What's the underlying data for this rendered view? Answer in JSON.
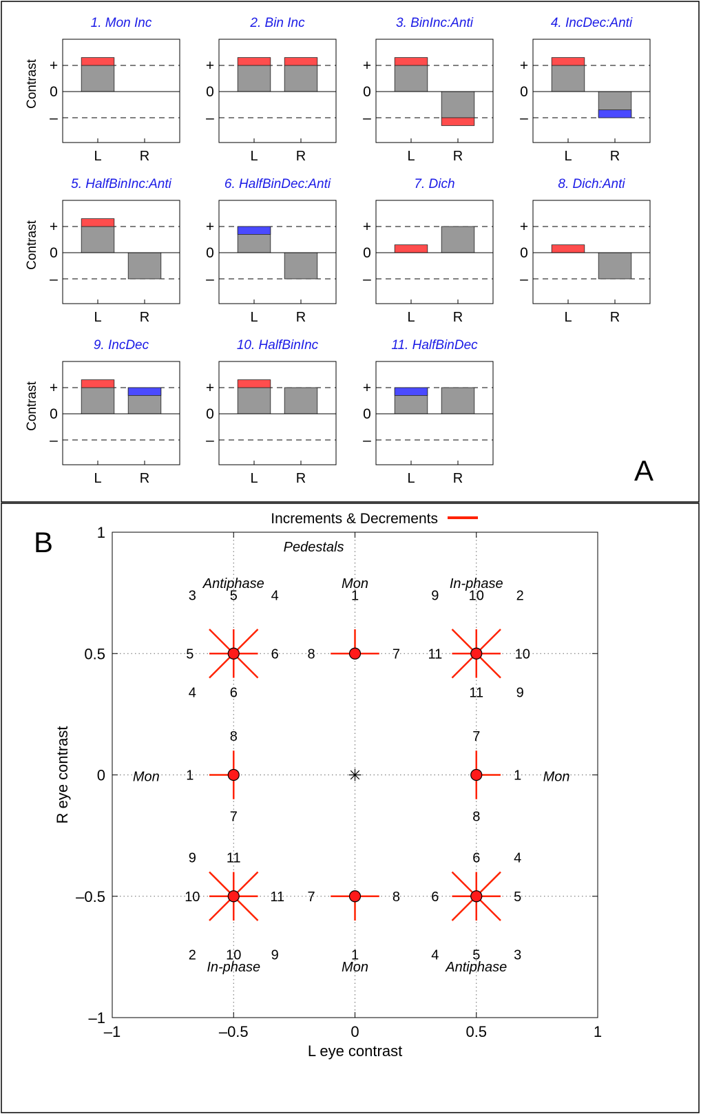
{
  "panel_a_letter": "A",
  "panel_b_letter": "B",
  "chart_data": [
    {
      "type": "bar",
      "panel": "A",
      "ylabel": "Contrast",
      "y_tick_labels": [
        "+",
        "0",
        "–"
      ],
      "eye_labels": [
        "L",
        "R"
      ],
      "colors": {
        "pedestal": "#999999",
        "increment": "#ff4d4d",
        "decrement": "#4a4aff"
      },
      "subplots": [
        {
          "title": "1. Mon Inc",
          "show_ylabel": true,
          "eyes": [
            {
              "pedestal": 1,
              "change": 0.3
            },
            {
              "pedestal": 0,
              "change": 0
            }
          ]
        },
        {
          "title": "2. Bin Inc",
          "show_ylabel": false,
          "eyes": [
            {
              "pedestal": 1,
              "change": 0.3
            },
            {
              "pedestal": 1,
              "change": 0.3
            }
          ]
        },
        {
          "title": "3. BinInc:Anti",
          "show_ylabel": false,
          "eyes": [
            {
              "pedestal": 1,
              "change": 0.3
            },
            {
              "pedestal": -1,
              "change": -0.3
            }
          ]
        },
        {
          "title": "4. IncDec:Anti",
          "show_ylabel": false,
          "eyes": [
            {
              "pedestal": 1,
              "change": 0.3
            },
            {
              "pedestal": -1,
              "change": 0.3
            }
          ]
        },
        {
          "title": "5. HalfBinInc:Anti",
          "show_ylabel": true,
          "eyes": [
            {
              "pedestal": 1,
              "change": 0.3
            },
            {
              "pedestal": -1,
              "change": 0
            }
          ]
        },
        {
          "title": "6. HalfBinDec:Anti",
          "show_ylabel": false,
          "eyes": [
            {
              "pedestal": 1,
              "change": -0.3
            },
            {
              "pedestal": -1,
              "change": 0
            }
          ]
        },
        {
          "title": "7. Dich",
          "show_ylabel": false,
          "eyes": [
            {
              "pedestal": 0,
              "change": 0.3
            },
            {
              "pedestal": 1,
              "change": 0
            }
          ]
        },
        {
          "title": "8. Dich:Anti",
          "show_ylabel": false,
          "eyes": [
            {
              "pedestal": 0,
              "change": 0.3
            },
            {
              "pedestal": -1,
              "change": 0
            }
          ]
        },
        {
          "title": "9. IncDec",
          "show_ylabel": true,
          "eyes": [
            {
              "pedestal": 1,
              "change": 0.3
            },
            {
              "pedestal": 1,
              "change": -0.3
            }
          ]
        },
        {
          "title": "10. HalfBinInc",
          "show_ylabel": false,
          "eyes": [
            {
              "pedestal": 1,
              "change": 0.3
            },
            {
              "pedestal": 1,
              "change": 0
            }
          ]
        },
        {
          "title": "11. HalfBinDec",
          "show_ylabel": false,
          "eyes": [
            {
              "pedestal": 1,
              "change": -0.3
            },
            {
              "pedestal": 1,
              "change": 0
            }
          ]
        }
      ]
    },
    {
      "type": "scatter",
      "panel": "B",
      "legend": {
        "label": "Increments & Decrements",
        "placement": "top",
        "color": "#ff2200"
      },
      "xlabel": "L eye contrast",
      "ylabel": "R eye contrast",
      "xlim": [
        -1,
        1
      ],
      "ylim": [
        -1,
        1
      ],
      "x_ticks": [
        {
          "value": -1,
          "label": "–1"
        },
        {
          "value": -0.5,
          "label": "–0.5"
        },
        {
          "value": 0,
          "label": "0"
        },
        {
          "value": 0.5,
          "label": "0.5"
        },
        {
          "value": 1,
          "label": "1"
        }
      ],
      "y_ticks": [
        {
          "value": -1,
          "label": "–1"
        },
        {
          "value": -0.5,
          "label": "–0.5"
        },
        {
          "value": 0,
          "label": "0"
        },
        {
          "value": 0.5,
          "label": "0.5"
        },
        {
          "value": 1,
          "label": "1"
        }
      ],
      "dotted_grid": [
        -0.5,
        0,
        0.5
      ],
      "origin_marker": {
        "x": 0,
        "y": 0,
        "symbol": "asterisk"
      },
      "annotations": [
        {
          "text": "Pedestals",
          "x": -0.17,
          "y": 0.94
        },
        {
          "text": "Antiphase",
          "x": -0.5,
          "y": 0.79
        },
        {
          "text": "Mon",
          "x": 0,
          "y": 0.79
        },
        {
          "text": "In-phase",
          "x": 0.5,
          "y": 0.79
        },
        {
          "text": "Mon",
          "x": -0.86,
          "y": -0.005
        },
        {
          "text": "Mon",
          "x": 0.83,
          "y": -0.005
        },
        {
          "text": "In-phase",
          "x": -0.5,
          "y": -0.79
        },
        {
          "text": "Mon",
          "x": 0,
          "y": -0.79
        },
        {
          "text": "Antiphase",
          "x": 0.5,
          "y": -0.79
        }
      ],
      "pedestals": [
        {
          "x": -0.5,
          "y": 0.5,
          "segments": [
            "h",
            "v",
            "d1",
            "d2"
          ],
          "labels": [
            {
              "text": "3",
              "dx": -0.17,
              "dy": 0.24
            },
            {
              "text": "5",
              "dx": 0,
              "dy": 0.24
            },
            {
              "text": "4",
              "dx": 0.17,
              "dy": 0.24
            },
            {
              "text": "5",
              "dx": -0.18,
              "dy": 0
            },
            {
              "text": "6",
              "dx": 0.17,
              "dy": 0
            },
            {
              "text": "4",
              "dx": -0.17,
              "dy": -0.16
            },
            {
              "text": "6",
              "dx": 0,
              "dy": -0.16
            }
          ]
        },
        {
          "x": 0,
          "y": 0.5,
          "segments": [
            "h",
            "vu"
          ],
          "labels": [
            {
              "text": "1",
              "dx": 0,
              "dy": 0.24
            },
            {
              "text": "8",
              "dx": -0.18,
              "dy": 0
            },
            {
              "text": "7",
              "dx": 0.17,
              "dy": 0
            }
          ]
        },
        {
          "x": 0.5,
          "y": 0.5,
          "segments": [
            "h",
            "v",
            "d1",
            "d2"
          ],
          "labels": [
            {
              "text": "9",
              "dx": -0.17,
              "dy": 0.24
            },
            {
              "text": "10",
              "dx": 0,
              "dy": 0.24
            },
            {
              "text": "2",
              "dx": 0.18,
              "dy": 0.24
            },
            {
              "text": "11",
              "dx": -0.17,
              "dy": 0
            },
            {
              "text": "10",
              "dx": 0.19,
              "dy": 0
            },
            {
              "text": "11",
              "dx": 0,
              "dy": -0.16
            },
            {
              "text": "9",
              "dx": 0.18,
              "dy": -0.16
            }
          ]
        },
        {
          "x": -0.5,
          "y": 0,
          "segments": [
            "hl",
            "v"
          ],
          "labels": [
            {
              "text": "8",
              "dx": 0,
              "dy": 0.16
            },
            {
              "text": "1",
              "dx": -0.18,
              "dy": 0
            },
            {
              "text": "7",
              "dx": 0,
              "dy": -0.17
            }
          ]
        },
        {
          "x": 0.5,
          "y": 0,
          "segments": [
            "hr",
            "v"
          ],
          "labels": [
            {
              "text": "7",
              "dx": 0,
              "dy": 0.16
            },
            {
              "text": "1",
              "dx": 0.17,
              "dy": 0
            },
            {
              "text": "8",
              "dx": 0,
              "dy": -0.17
            }
          ]
        },
        {
          "x": -0.5,
          "y": -0.5,
          "segments": [
            "h",
            "v",
            "d1",
            "d2"
          ],
          "labels": [
            {
              "text": "9",
              "dx": -0.17,
              "dy": 0.16
            },
            {
              "text": "11",
              "dx": 0,
              "dy": 0.16
            },
            {
              "text": "10",
              "dx": -0.17,
              "dy": 0
            },
            {
              "text": "11",
              "dx": 0.18,
              "dy": 0
            },
            {
              "text": "2",
              "dx": -0.17,
              "dy": -0.24
            },
            {
              "text": "10",
              "dx": 0,
              "dy": -0.24
            },
            {
              "text": "9",
              "dx": 0.17,
              "dy": -0.24
            }
          ]
        },
        {
          "x": 0,
          "y": -0.5,
          "segments": [
            "h",
            "vd"
          ],
          "labels": [
            {
              "text": "7",
              "dx": -0.18,
              "dy": 0
            },
            {
              "text": "8",
              "dx": 0.17,
              "dy": 0
            },
            {
              "text": "1",
              "dx": 0,
              "dy": -0.24
            }
          ]
        },
        {
          "x": 0.5,
          "y": -0.5,
          "segments": [
            "h",
            "v",
            "d1",
            "d2"
          ],
          "labels": [
            {
              "text": "6",
              "dx": 0,
              "dy": 0.16
            },
            {
              "text": "4",
              "dx": 0.17,
              "dy": 0.16
            },
            {
              "text": "6",
              "dx": -0.17,
              "dy": 0
            },
            {
              "text": "5",
              "dx": 0.17,
              "dy": 0
            },
            {
              "text": "4",
              "dx": -0.17,
              "dy": -0.24
            },
            {
              "text": "5",
              "dx": 0,
              "dy": -0.24
            },
            {
              "text": "3",
              "dx": 0.17,
              "dy": -0.24
            }
          ]
        }
      ]
    }
  ]
}
